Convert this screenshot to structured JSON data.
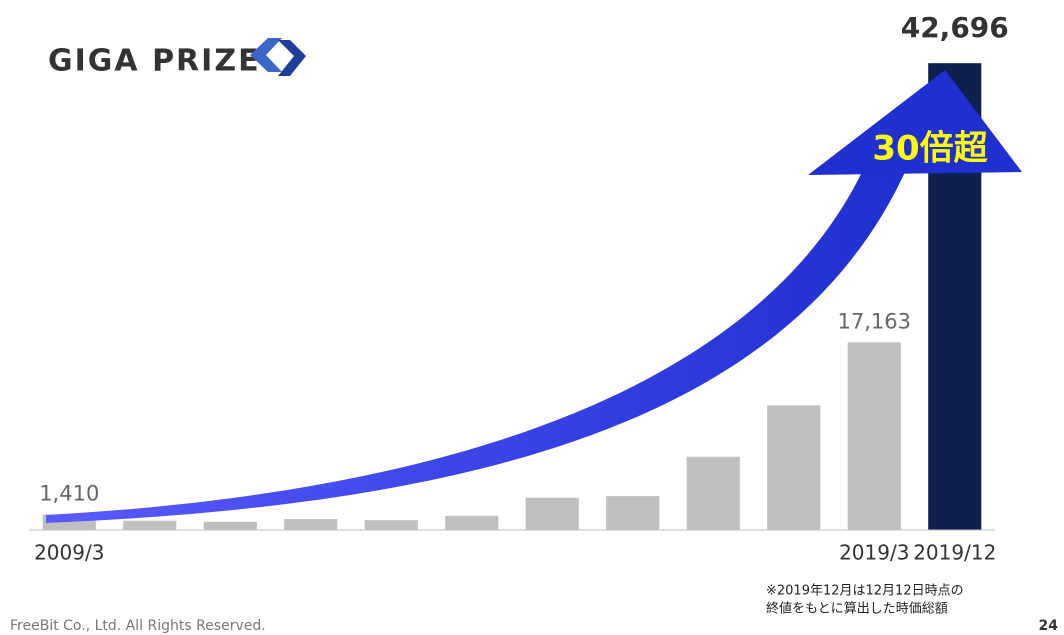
{
  "logo": "GIGA PRIZE",
  "chart_data": {
    "type": "bar",
    "categories": [
      "2009/3",
      null,
      null,
      null,
      null,
      null,
      null,
      null,
      null,
      null,
      "2019/3",
      "2019/12"
    ],
    "values": [
      1410,
      850,
      750,
      1000,
      900,
      1300,
      2950,
      3100,
      6700,
      11400,
      17163,
      42696
    ],
    "value_labels": [
      "1,410",
      null,
      null,
      null,
      null,
      null,
      null,
      null,
      null,
      null,
      "17,163",
      "42,696"
    ],
    "colors": [
      "#bfbfbf",
      "#bfbfbf",
      "#bfbfbf",
      "#bfbfbf",
      "#bfbfbf",
      "#bfbfbf",
      "#bfbfbf",
      "#bfbfbf",
      "#bfbfbf",
      "#bfbfbf",
      "#bfbfbf",
      "#0d2050"
    ],
    "ylim": [
      0,
      45000
    ],
    "annotation": "30倍超"
  },
  "footnote": [
    "※2019年12月は12月12日時点の",
    "終値をもとに算出した時価総額"
  ],
  "footer": "FreeBit Co., Ltd. All Rights Reserved.",
  "page_number": "24"
}
